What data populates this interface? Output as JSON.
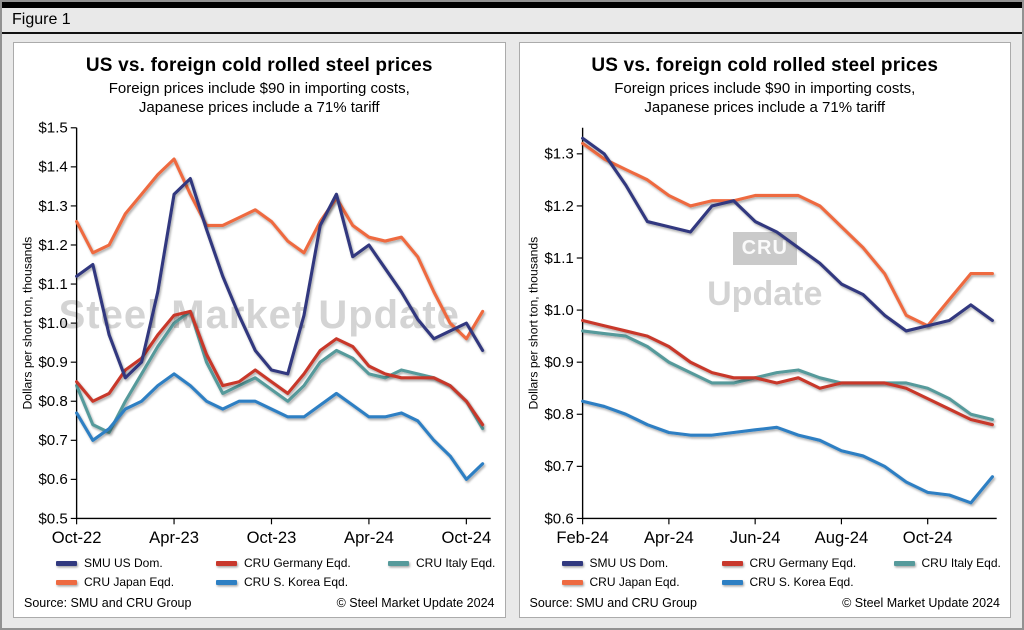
{
  "figure_label": "Figure 1",
  "source": "Source: SMU and CRU Group",
  "copyright": "© Steel Market Update 2024",
  "watermarks": {
    "left": "Steel Market Update",
    "cru_logo": "CRU",
    "cru_text": "Update"
  },
  "colors": {
    "smu_us": "#31397f",
    "cru_germany": "#c8382c",
    "cru_italy": "#569a9b",
    "cru_japan": "#ee6a41",
    "cru_skorea": "#2d7fc3"
  },
  "legend": [
    {
      "key": "smu_us",
      "label": "SMU US Dom."
    },
    {
      "key": "cru_germany",
      "label": "CRU Germany Eqd."
    },
    {
      "key": "cru_italy",
      "label": "CRU Italy Eqd."
    },
    {
      "key": "cru_japan",
      "label": "CRU Japan Eqd."
    },
    {
      "key": "cru_skorea",
      "label": "CRU S. Korea Eqd."
    }
  ],
  "chart_data": [
    {
      "type": "line",
      "title": "US vs. foreign cold rolled steel prices",
      "subtitle_line1": "Foreign prices include $90 in importing costs,",
      "subtitle_line2": "Japanese prices include a 71% tariff",
      "ylabel": "Dollars per short ton, thousands",
      "x_description": "months since Oct-2022",
      "xlim": [
        0,
        25.5
      ],
      "ylim": [
        0.5,
        1.5
      ],
      "grid": false,
      "yticks": [
        0.5,
        0.6,
        0.7,
        0.8,
        0.9,
        1.0,
        1.1,
        1.2,
        1.3,
        1.4,
        1.5
      ],
      "xticks": [
        {
          "x": 0,
          "label": "Oct-22"
        },
        {
          "x": 6,
          "label": "Apr-23"
        },
        {
          "x": 12,
          "label": "Oct-23"
        },
        {
          "x": 18,
          "label": "Apr-24"
        },
        {
          "x": 24,
          "label": "Oct-24"
        }
      ],
      "x": [
        0,
        1,
        2,
        3,
        4,
        5,
        6,
        7,
        8,
        9,
        10,
        11,
        12,
        13,
        14,
        15,
        16,
        17,
        18,
        19,
        20,
        21,
        22,
        23,
        24,
        25
      ],
      "series": [
        {
          "key": "cru_japan",
          "name": "CRU Japan Eqd.",
          "values": [
            1.26,
            1.18,
            1.2,
            1.28,
            1.33,
            1.38,
            1.42,
            1.33,
            1.25,
            1.25,
            1.27,
            1.29,
            1.26,
            1.21,
            1.18,
            1.26,
            1.32,
            1.25,
            1.22,
            1.21,
            1.22,
            1.17,
            1.08,
            1.0,
            0.96,
            1.03
          ]
        },
        {
          "key": "cru_italy",
          "name": "CRU Italy Eqd.",
          "values": [
            0.84,
            0.74,
            0.72,
            0.8,
            0.87,
            0.94,
            1.0,
            1.03,
            0.9,
            0.82,
            0.84,
            0.86,
            0.83,
            0.8,
            0.84,
            0.9,
            0.93,
            0.91,
            0.87,
            0.86,
            0.88,
            0.87,
            0.86,
            0.84,
            0.8,
            0.73
          ]
        },
        {
          "key": "cru_germany",
          "name": "CRU Germany Eqd.",
          "values": [
            0.85,
            0.8,
            0.82,
            0.88,
            0.91,
            0.97,
            1.02,
            1.03,
            0.92,
            0.84,
            0.85,
            0.88,
            0.85,
            0.82,
            0.87,
            0.93,
            0.96,
            0.94,
            0.89,
            0.87,
            0.86,
            0.86,
            0.86,
            0.84,
            0.8,
            0.74
          ]
        },
        {
          "key": "cru_skorea",
          "name": "CRU S. Korea Eqd.",
          "values": [
            0.77,
            0.7,
            0.73,
            0.78,
            0.8,
            0.84,
            0.87,
            0.84,
            0.8,
            0.78,
            0.8,
            0.8,
            0.78,
            0.76,
            0.76,
            0.79,
            0.82,
            0.79,
            0.76,
            0.76,
            0.77,
            0.75,
            0.7,
            0.66,
            0.6,
            0.64
          ]
        },
        {
          "key": "smu_us",
          "name": "SMU US Dom.",
          "values": [
            1.12,
            1.15,
            0.97,
            0.86,
            0.9,
            1.08,
            1.33,
            1.37,
            1.24,
            1.12,
            1.02,
            0.93,
            0.88,
            0.87,
            1.02,
            1.25,
            1.33,
            1.17,
            1.2,
            1.14,
            1.08,
            1.01,
            0.96,
            0.98,
            1.0,
            0.93
          ]
        }
      ]
    },
    {
      "type": "line",
      "title": "US vs. foreign cold rolled steel prices",
      "subtitle_line1": "Foreign prices include $90 in importing costs,",
      "subtitle_line2": "Japanese prices include a 71% tariff",
      "ylabel": "Dollars per short ton, thousands",
      "x_description": "months since Feb-2024",
      "xlim": [
        0,
        9.6
      ],
      "ylim": [
        0.6,
        1.35
      ],
      "grid": false,
      "yticks": [
        0.6,
        0.7,
        0.8,
        0.9,
        1.0,
        1.1,
        1.2,
        1.3
      ],
      "xticks": [
        {
          "x": 0,
          "label": "Feb-24"
        },
        {
          "x": 2,
          "label": "Apr-24"
        },
        {
          "x": 4,
          "label": "Jun-24"
        },
        {
          "x": 6,
          "label": "Aug-24"
        },
        {
          "x": 8,
          "label": "Oct-24"
        }
      ],
      "x": [
        0,
        0.5,
        1,
        1.5,
        2,
        2.5,
        3,
        3.5,
        4,
        4.5,
        5,
        5.5,
        6,
        6.5,
        7,
        7.5,
        8,
        8.5,
        9,
        9.5
      ],
      "series": [
        {
          "key": "cru_japan",
          "name": "CRU Japan Eqd.",
          "values": [
            1.32,
            1.29,
            1.27,
            1.25,
            1.22,
            1.2,
            1.21,
            1.21,
            1.22,
            1.22,
            1.22,
            1.2,
            1.16,
            1.12,
            1.07,
            0.99,
            0.97,
            1.02,
            1.07,
            1.07
          ]
        },
        {
          "key": "cru_italy",
          "name": "CRU Italy Eqd.",
          "values": [
            0.96,
            0.955,
            0.95,
            0.93,
            0.9,
            0.88,
            0.86,
            0.86,
            0.87,
            0.88,
            0.885,
            0.87,
            0.86,
            0.86,
            0.86,
            0.86,
            0.85,
            0.83,
            0.8,
            0.79
          ]
        },
        {
          "key": "cru_germany",
          "name": "CRU Germany Eqd.",
          "values": [
            0.98,
            0.97,
            0.96,
            0.95,
            0.93,
            0.9,
            0.88,
            0.87,
            0.87,
            0.86,
            0.87,
            0.85,
            0.86,
            0.86,
            0.86,
            0.85,
            0.83,
            0.81,
            0.79,
            0.78
          ]
        },
        {
          "key": "cru_skorea",
          "name": "CRU S. Korea Eqd.",
          "values": [
            0.825,
            0.815,
            0.8,
            0.78,
            0.765,
            0.76,
            0.76,
            0.765,
            0.77,
            0.775,
            0.76,
            0.75,
            0.73,
            0.72,
            0.7,
            0.67,
            0.65,
            0.645,
            0.63,
            0.68
          ]
        },
        {
          "key": "smu_us",
          "name": "SMU US Dom.",
          "values": [
            1.33,
            1.3,
            1.24,
            1.17,
            1.16,
            1.15,
            1.2,
            1.21,
            1.17,
            1.15,
            1.12,
            1.09,
            1.05,
            1.03,
            0.99,
            0.96,
            0.97,
            0.98,
            1.01,
            0.98
          ]
        }
      ]
    }
  ]
}
